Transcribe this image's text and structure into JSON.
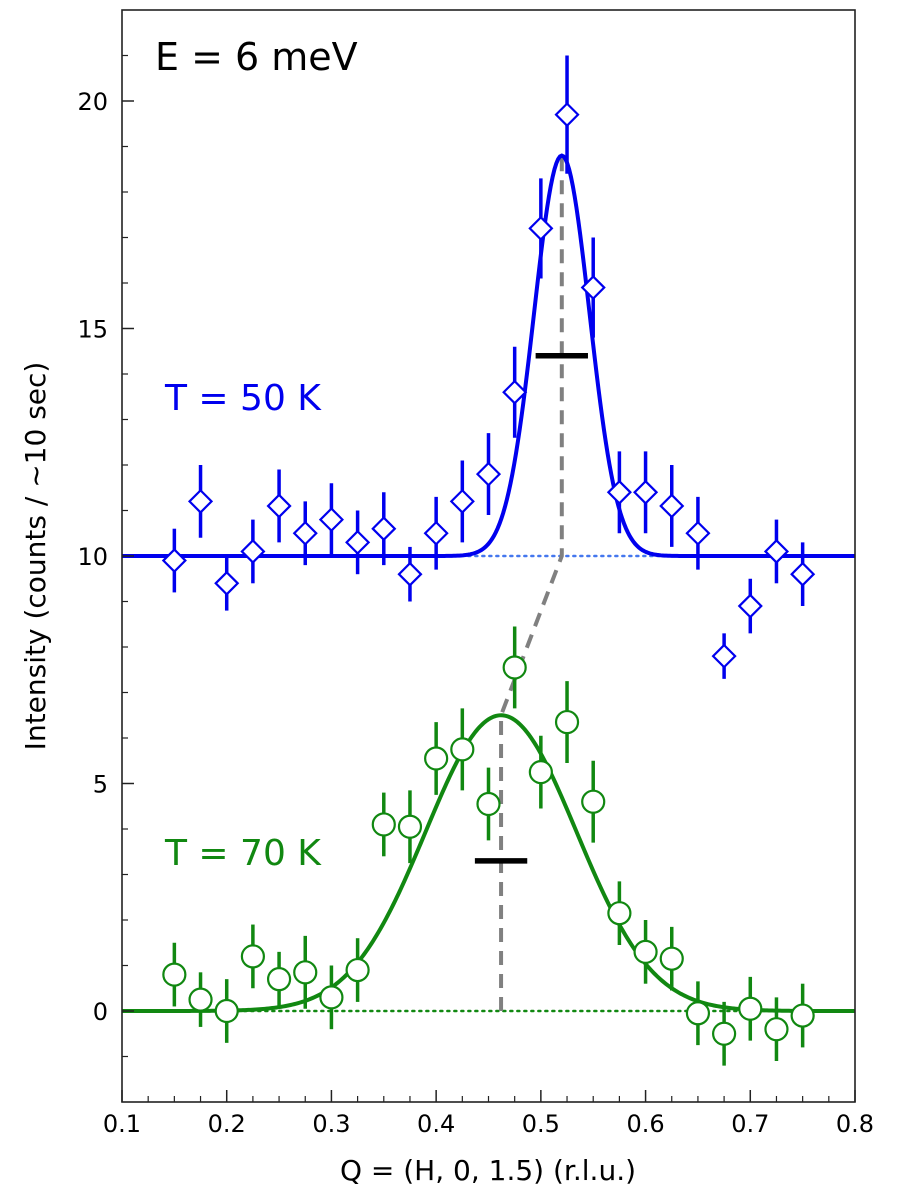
{
  "chart_data": {
    "type": "scatter",
    "annotation": "E = 6 meV",
    "xlabel": "Q = (H, 0, 1.5) (r.l.u.)",
    "ylabel": "Intensity (counts / ~10 sec)",
    "xlim": [
      0.1,
      0.8
    ],
    "ylim": [
      -2,
      22
    ],
    "x_ticks": [
      0.1,
      0.2,
      0.3,
      0.4,
      0.5,
      0.6,
      0.7,
      0.8
    ],
    "x_tick_labels": [
      "0.1",
      "0.2",
      "0.3",
      "0.4",
      "0.5",
      "0.6",
      "0.7",
      "0.8"
    ],
    "x_minor_ticks": [
      0.125,
      0.15,
      0.175,
      0.225,
      0.25,
      0.275,
      0.325,
      0.35,
      0.375,
      0.425,
      0.45,
      0.475,
      0.525,
      0.55,
      0.575,
      0.625,
      0.65,
      0.675,
      0.725,
      0.75,
      0.775
    ],
    "y_ticks": [
      0,
      5,
      10,
      15,
      20
    ],
    "y_tick_labels": [
      "0",
      "5",
      "10",
      "15",
      "20"
    ],
    "y_minor_ticks": [
      -1,
      1,
      2,
      3,
      4,
      6,
      7,
      8,
      9,
      11,
      12,
      13,
      14,
      16,
      17,
      18,
      19,
      21
    ],
    "series": [
      {
        "name": "T = 50 K",
        "color": "#0000ee",
        "marker": "diamond",
        "label_y": 13.5,
        "x": [
          0.15,
          0.175,
          0.2,
          0.225,
          0.25,
          0.275,
          0.3,
          0.325,
          0.35,
          0.375,
          0.4,
          0.425,
          0.45,
          0.475,
          0.5,
          0.525,
          0.55,
          0.575,
          0.6,
          0.625,
          0.65,
          0.675,
          0.7,
          0.725,
          0.75
        ],
        "y": [
          9.9,
          11.2,
          9.4,
          10.1,
          11.1,
          10.5,
          10.8,
          10.3,
          10.6,
          9.6,
          10.5,
          11.2,
          11.8,
          13.6,
          17.2,
          19.7,
          15.9,
          11.4,
          11.4,
          11.1,
          10.5,
          7.8,
          8.9,
          10.1,
          9.6
        ],
        "yerr": [
          0.7,
          0.8,
          0.6,
          0.7,
          0.8,
          0.7,
          0.8,
          0.7,
          0.8,
          0.6,
          0.8,
          0.9,
          0.9,
          1.0,
          1.1,
          1.3,
          1.1,
          0.9,
          0.9,
          0.9,
          0.8,
          0.5,
          0.6,
          0.7,
          0.7
        ],
        "fit": {
          "model": "gaussian",
          "background": 10,
          "amplitude": 8.8,
          "center": 0.52,
          "sigma": 0.0265
        },
        "baseline": 10,
        "resolution_bar": {
          "center": 0.52,
          "width": 0.05,
          "y": 14.4
        }
      },
      {
        "name": "T = 70 K",
        "color": "#118811",
        "marker": "circle",
        "label_y": 3.5,
        "x": [
          0.15,
          0.175,
          0.2,
          0.225,
          0.25,
          0.275,
          0.3,
          0.325,
          0.35,
          0.375,
          0.4,
          0.425,
          0.45,
          0.475,
          0.5,
          0.525,
          0.55,
          0.575,
          0.6,
          0.625,
          0.65,
          0.675,
          0.7,
          0.725,
          0.75
        ],
        "y": [
          0.8,
          0.25,
          0.0,
          1.2,
          0.7,
          0.85,
          0.3,
          0.9,
          4.1,
          4.05,
          5.55,
          5.75,
          4.55,
          7.55,
          5.25,
          6.35,
          4.6,
          2.15,
          1.3,
          1.15,
          -0.05,
          -0.5,
          0.05,
          -0.4,
          -0.1
        ],
        "yerr": [
          0.7,
          0.6,
          0.7,
          0.7,
          0.6,
          0.8,
          0.7,
          0.7,
          0.7,
          0.8,
          0.8,
          0.9,
          0.8,
          0.9,
          0.8,
          0.9,
          0.9,
          0.7,
          0.7,
          0.7,
          0.7,
          0.7,
          0.7,
          0.7,
          0.7
        ],
        "fit": {
          "model": "gaussian",
          "background": 0,
          "amplitude": 6.5,
          "center": 0.462,
          "sigma": 0.072
        },
        "baseline": 0,
        "resolution_bar": {
          "center": 0.462,
          "width": 0.05,
          "y": 3.3
        }
      }
    ],
    "guide_line": {
      "color": "#808080",
      "style": "dashed",
      "points": [
        [
          0.462,
          0
        ],
        [
          0.462,
          6.5
        ],
        [
          0.52,
          10
        ],
        [
          0.52,
          18.9
        ]
      ]
    }
  }
}
